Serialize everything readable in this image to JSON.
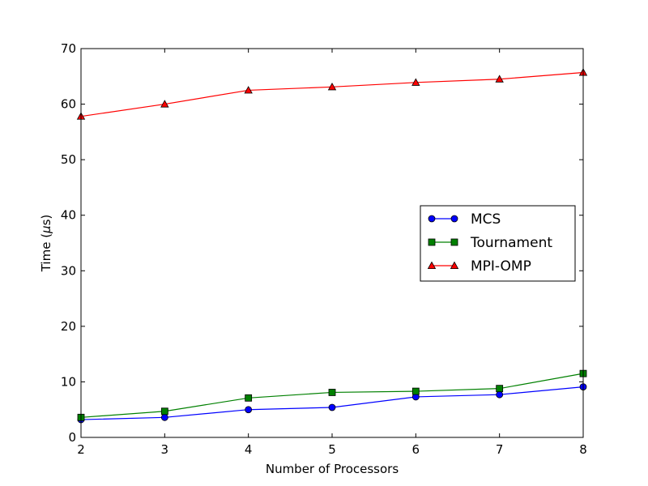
{
  "chart_data": {
    "type": "line",
    "title": "",
    "xlabel": "Number of Processors",
    "ylabel_text": "Time (",
    "ylabel_symbol": "μ",
    "ylabel_unit": "s)",
    "x": [
      2,
      3,
      4,
      5,
      6,
      7,
      8
    ],
    "xlim": [
      2,
      8
    ],
    "ylim": [
      0,
      70
    ],
    "xticks": [
      2,
      3,
      4,
      5,
      6,
      7,
      8
    ],
    "yticks": [
      0,
      10,
      20,
      30,
      40,
      50,
      60,
      70
    ],
    "grid": false,
    "legend_position": "center-right",
    "series": [
      {
        "name": "MCS",
        "color": "#0000ff",
        "marker": "circle",
        "values": [
          3.2,
          3.6,
          5.0,
          5.4,
          7.3,
          7.7,
          9.1
        ]
      },
      {
        "name": "Tournament",
        "color": "#008000",
        "marker": "square",
        "values": [
          3.6,
          4.7,
          7.1,
          8.1,
          8.3,
          8.8,
          11.5
        ]
      },
      {
        "name": "MPI-OMP",
        "color": "#ff0000",
        "marker": "triangle",
        "values": [
          57.8,
          60.0,
          62.5,
          63.1,
          63.9,
          64.5,
          65.7
        ]
      }
    ]
  }
}
